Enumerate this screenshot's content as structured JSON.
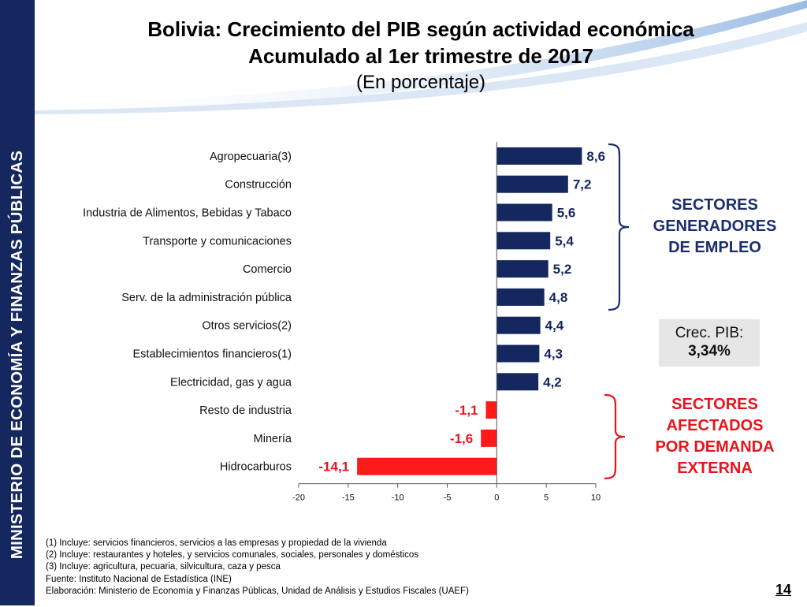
{
  "sidebar": {
    "text": "MINISTERIO DE ECONOMÍA Y FINANZAS PÚBLICAS"
  },
  "header": {
    "title": "Bolivia: Crecimiento del PIB según actividad económica",
    "title2": "Acumulado al 1er trimestre de 2017",
    "subtitle": "(En porcentaje)"
  },
  "chart_data": {
    "type": "bar",
    "orientation": "horizontal",
    "categories": [
      "Agropecuaria(3)",
      "Construcción",
      "Industria de Alimentos, Bebidas y Tabaco",
      "Transporte y comunicaciones",
      "Comercio",
      "Serv. de la administración pública",
      "Otros servicios(2)",
      "Establecimientos financieros(1)",
      "Electricidad, gas y agua",
      "Resto de industria",
      "Minería",
      "Hidrocarburos"
    ],
    "values": [
      8.6,
      7.2,
      5.6,
      5.4,
      5.2,
      4.8,
      4.4,
      4.3,
      4.2,
      -1.1,
      -1.6,
      -14.1
    ],
    "value_labels": [
      "8,6",
      "7,2",
      "5,6",
      "5,4",
      "5,2",
      "4,8",
      "4,4",
      "4,3",
      "4,2",
      "-1,1",
      "-1,6",
      "-14,1"
    ],
    "xlim": [
      -20,
      10
    ],
    "xticks": [
      -20,
      -15,
      -10,
      -5,
      0,
      5,
      10
    ],
    "grid": false,
    "colors": {
      "positive": "#14275e",
      "negative": "#ff1a1a",
      "negative_label": "#e8141b"
    }
  },
  "groups": {
    "positive_label": [
      "SECTORES",
      "GENERADORES",
      "DE EMPLEO"
    ],
    "negative_label": [
      "SECTORES",
      "AFECTADOS",
      "POR DEMANDA",
      "EXTERNA"
    ],
    "bracket_positive_color": "#1a2d6e",
    "bracket_negative_color": "#e8141b"
  },
  "pib_box": {
    "label": "Crec. PIB:",
    "value": "3,34%"
  },
  "footnotes": [
    "(1) Incluye: servicios financieros, servicios a las empresas y propiedad de la vivienda",
    "(2) Incluye: restaurantes y hoteles, y servicios comunales, sociales, personales y domésticos",
    "(3) Incluye: agricultura, pecuaria, silvicultura, caza y pesca",
    "Fuente: Instituto Nacional de Estadística (INE)",
    "Elaboración: Ministerio de Economía y Finanzas Públicas, Unidad de Análisis y Estudios Fiscales (UAEF)"
  ],
  "page_number": "14"
}
